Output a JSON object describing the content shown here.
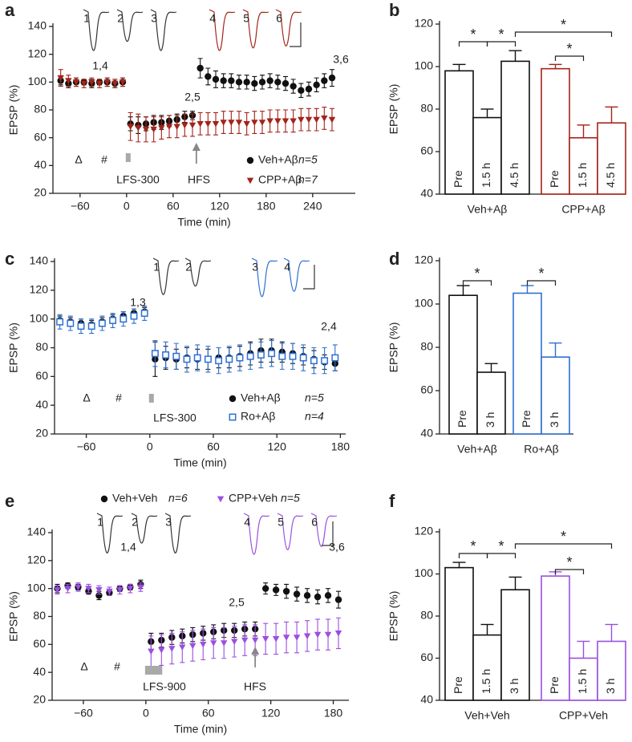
{
  "chart_data": [
    {
      "type": "timecourse",
      "label": "a",
      "xlabel": "Time (min)",
      "ylabel": "EPSP (%)",
      "xlim": [
        -95,
        295
      ],
      "xticks": [
        {
          "value": -60,
          "label": "−60"
        },
        0,
        60,
        120,
        180,
        240
      ],
      "ylim": [
        20,
        140
      ],
      "yticks": [
        20,
        40,
        60,
        80,
        100,
        120,
        140
      ],
      "traces": [
        "1",
        "2",
        "3",
        "4",
        "5",
        "6"
      ],
      "annotations": [
        "1,4",
        "2,5",
        "3,6",
        "Δ",
        "#",
        "LFS-300",
        "HFS"
      ],
      "series": [
        {
          "name": "Veh+Aβ",
          "n": "n=5",
          "color": "#111111",
          "marker": "circle",
          "x": [
            -85,
            -75,
            -65,
            -55,
            -45,
            -35,
            -25,
            -15,
            -5,
            5,
            15,
            25,
            35,
            45,
            55,
            65,
            75,
            85,
            95,
            105,
            115,
            125,
            135,
            145,
            155,
            165,
            175,
            185,
            195,
            205,
            215,
            225,
            235,
            245,
            255,
            265
          ],
          "values": [
            101,
            99,
            100,
            100,
            99,
            100,
            100,
            99,
            100,
            70,
            69,
            70,
            71,
            71,
            72,
            73,
            75,
            76,
            110,
            104,
            102,
            101,
            101,
            100,
            100,
            99,
            100,
            101,
            100,
            99,
            97,
            94,
            95,
            98,
            101,
            103
          ],
          "errors": [
            3,
            3,
            3,
            2,
            3,
            2,
            3,
            3,
            3,
            5,
            6,
            5,
            5,
            5,
            4,
            4,
            4,
            3,
            7,
            6,
            6,
            5,
            5,
            5,
            5,
            5,
            5,
            5,
            5,
            5,
            5,
            5,
            5,
            5,
            5,
            6
          ]
        },
        {
          "name": "CPP+Aβ",
          "n": "n=7",
          "color": "#a3241a",
          "marker": "triangle",
          "x": [
            -85,
            -75,
            -65,
            -55,
            -45,
            -35,
            -25,
            -15,
            -5,
            5,
            15,
            25,
            35,
            45,
            55,
            65,
            75,
            85,
            95,
            105,
            115,
            125,
            135,
            145,
            155,
            165,
            175,
            185,
            195,
            205,
            215,
            225,
            235,
            245,
            255,
            265
          ],
          "values": [
            103,
            101,
            100,
            99,
            100,
            99,
            100,
            99,
            100,
            68,
            67,
            66,
            66,
            67,
            68,
            68,
            69,
            69,
            70,
            70,
            70,
            71,
            71,
            71,
            70,
            71,
            71,
            72,
            72,
            72,
            72,
            73,
            73,
            73,
            74,
            73
          ],
          "errors": [
            6,
            4,
            3,
            3,
            3,
            3,
            3,
            3,
            3,
            10,
            10,
            9,
            9,
            8,
            8,
            8,
            8,
            8,
            8,
            8,
            8,
            8,
            8,
            8,
            8,
            8,
            8,
            8,
            8,
            8,
            8,
            8,
            8,
            8,
            8,
            8
          ]
        }
      ]
    },
    {
      "type": "bar",
      "label": "b",
      "ylabel": "EPSP (%)",
      "ylim": [
        40,
        120
      ],
      "yticks": [
        40,
        60,
        80,
        100,
        120
      ],
      "stars": [
        "*",
        "*",
        "*",
        "*"
      ],
      "series": [
        {
          "name": "Veh+Aβ",
          "color": "#111111",
          "bar_labels": [
            "Pre",
            "1.5 h",
            "4.5 h"
          ],
          "values": [
            98,
            76,
            102.5
          ],
          "errors": [
            3,
            4,
            5
          ]
        },
        {
          "name": "CPP+Aβ",
          "color": "#a3241a",
          "bar_labels": [
            "Pre",
            "1.5 h",
            "4.5 h"
          ],
          "values": [
            99,
            66.5,
            73.5
          ],
          "errors": [
            2,
            6,
            7.5
          ]
        }
      ]
    },
    {
      "type": "timecourse",
      "label": "c",
      "xlabel": "Time (min)",
      "ylabel": "EPSP (%)",
      "xlim": [
        -90,
        185
      ],
      "xticks": [
        {
          "value": -60,
          "label": "−60"
        },
        0,
        60,
        120,
        180
      ],
      "ylim": [
        20,
        140
      ],
      "yticks": [
        20,
        40,
        60,
        80,
        100,
        120,
        140
      ],
      "traces": [
        "1",
        "2",
        "3",
        "4"
      ],
      "annotations": [
        "1,3",
        "2,4",
        "Δ",
        "#",
        "LFS-300"
      ],
      "series": [
        {
          "name": "Veh+Aβ",
          "n": "n=5",
          "color": "#111111",
          "marker": "circle",
          "x": [
            -85,
            -75,
            -65,
            -55,
            -45,
            -35,
            -25,
            -15,
            -5,
            5,
            15,
            25,
            35,
            45,
            55,
            65,
            75,
            85,
            95,
            105,
            115,
            125,
            135,
            145,
            155,
            165,
            175
          ],
          "values": [
            99,
            98,
            97,
            96,
            98,
            100,
            102,
            104,
            105,
            72,
            73,
            72,
            73,
            72,
            72,
            73,
            73,
            74,
            76,
            78,
            78,
            77,
            76,
            74,
            72,
            70,
            69
          ],
          "errors": [
            3,
            3,
            3,
            3,
            3,
            3,
            3,
            3,
            3,
            12,
            8,
            7,
            7,
            7,
            7,
            7,
            7,
            7,
            8,
            8,
            8,
            7,
            7,
            6,
            6,
            5,
            5
          ]
        },
        {
          "name": "Ro+Aβ",
          "n": "n=4",
          "color": "#2f6fd1",
          "marker": "square",
          "x": [
            -85,
            -75,
            -65,
            -55,
            -45,
            -35,
            -25,
            -15,
            -5,
            5,
            15,
            25,
            35,
            45,
            55,
            65,
            75,
            85,
            95,
            105,
            115,
            125,
            135,
            145,
            155,
            165,
            175
          ],
          "values": [
            98,
            97,
            95,
            95,
            97,
            99,
            100,
            102,
            104,
            76,
            75,
            74,
            72,
            73,
            72,
            71,
            72,
            73,
            74,
            75,
            76,
            74,
            74,
            73,
            71,
            71,
            73
          ],
          "errors": [
            5,
            5,
            5,
            5,
            5,
            5,
            5,
            5,
            5,
            9,
            9,
            9,
            9,
            9,
            9,
            9,
            9,
            9,
            9,
            9,
            9,
            9,
            9,
            9,
            9,
            9,
            9
          ]
        }
      ]
    },
    {
      "type": "bar",
      "label": "d",
      "ylabel": "EPSP (%)",
      "ylim": [
        40,
        120
      ],
      "yticks": [
        40,
        60,
        80,
        100,
        120
      ],
      "stars": [
        "*",
        "*"
      ],
      "series": [
        {
          "name": "Veh+Aβ",
          "color": "#111111",
          "bar_labels": [
            "Pre",
            "3 h"
          ],
          "values": [
            104,
            68.5
          ],
          "errors": [
            4.5,
            4
          ]
        },
        {
          "name": "Ro+Aβ",
          "color": "#2f6fd1",
          "bar_labels": [
            "Pre",
            "3 h"
          ],
          "values": [
            105,
            75.5
          ],
          "errors": [
            3.5,
            6.5
          ]
        }
      ]
    },
    {
      "type": "timecourse",
      "label": "e",
      "xlabel": "Time (min)",
      "ylabel": "EPSP (%)",
      "xlim": [
        -90,
        195
      ],
      "xticks": [
        {
          "value": -60,
          "label": "−60"
        },
        0,
        60,
        120,
        180
      ],
      "ylim": [
        20,
        140
      ],
      "yticks": [
        20,
        40,
        60,
        80,
        100,
        120,
        140
      ],
      "traces": [
        "1",
        "2",
        "3",
        "4",
        "5",
        "6"
      ],
      "annotations": [
        "1,4",
        "2,5",
        "3,6",
        "Δ",
        "#",
        "LFS-900",
        "HFS"
      ],
      "series": [
        {
          "name": "Veh+Veh",
          "n": "n=6",
          "color": "#111111",
          "marker": "circle",
          "x": [
            -85,
            -75,
            -65,
            -55,
            -45,
            -35,
            -25,
            -15,
            -5,
            5,
            15,
            25,
            35,
            45,
            55,
            65,
            75,
            85,
            95,
            105,
            115,
            125,
            135,
            145,
            155,
            165,
            175,
            185
          ],
          "values": [
            100,
            102,
            101,
            98,
            95,
            97,
            100,
            101,
            103,
            62,
            63,
            65,
            66,
            67,
            68,
            69,
            70,
            70,
            71,
            71,
            100,
            99,
            98,
            96,
            95,
            94,
            95,
            92
          ],
          "errors": [
            3,
            2,
            2,
            2,
            3,
            2,
            2,
            2,
            3,
            6,
            5,
            5,
            5,
            5,
            5,
            5,
            5,
            5,
            5,
            5,
            4,
            4,
            5,
            5,
            5,
            5,
            5,
            6
          ]
        },
        {
          "name": "CPP+Veh",
          "n": "n=5",
          "color": "#9b4fe0",
          "marker": "triangle",
          "x": [
            -85,
            -75,
            -65,
            -55,
            -45,
            -35,
            -25,
            -15,
            -5,
            5,
            15,
            25,
            35,
            45,
            55,
            65,
            75,
            85,
            95,
            105,
            115,
            125,
            135,
            145,
            155,
            165,
            175,
            185
          ],
          "values": [
            99,
            100,
            101,
            100,
            99,
            98,
            99,
            100,
            101,
            55,
            56,
            57,
            58,
            59,
            60,
            61,
            61,
            62,
            63,
            63,
            64,
            64,
            65,
            65,
            66,
            67,
            67,
            68
          ],
          "errors": [
            3,
            3,
            3,
            3,
            3,
            3,
            3,
            3,
            3,
            11,
            11,
            11,
            11,
            11,
            11,
            11,
            11,
            11,
            11,
            11,
            11,
            11,
            11,
            11,
            11,
            11,
            11,
            11
          ]
        }
      ]
    },
    {
      "type": "bar",
      "label": "f",
      "ylabel": "EPSP (%)",
      "ylim": [
        40,
        120
      ],
      "yticks": [
        40,
        60,
        80,
        100,
        120
      ],
      "stars": [
        "*",
        "*",
        "*",
        "*"
      ],
      "series": [
        {
          "name": "Veh+Veh",
          "color": "#111111",
          "bar_labels": [
            "Pre",
            "1.5 h",
            "3 h"
          ],
          "values": [
            103,
            71,
            92.5
          ],
          "errors": [
            2.5,
            5,
            6
          ]
        },
        {
          "name": "CPP+Veh",
          "color": "#9b4fe0",
          "bar_labels": [
            "Pre",
            "1.5 h",
            "3 h"
          ],
          "values": [
            99,
            60,
            68
          ],
          "errors": [
            2,
            8,
            8
          ]
        }
      ]
    }
  ]
}
